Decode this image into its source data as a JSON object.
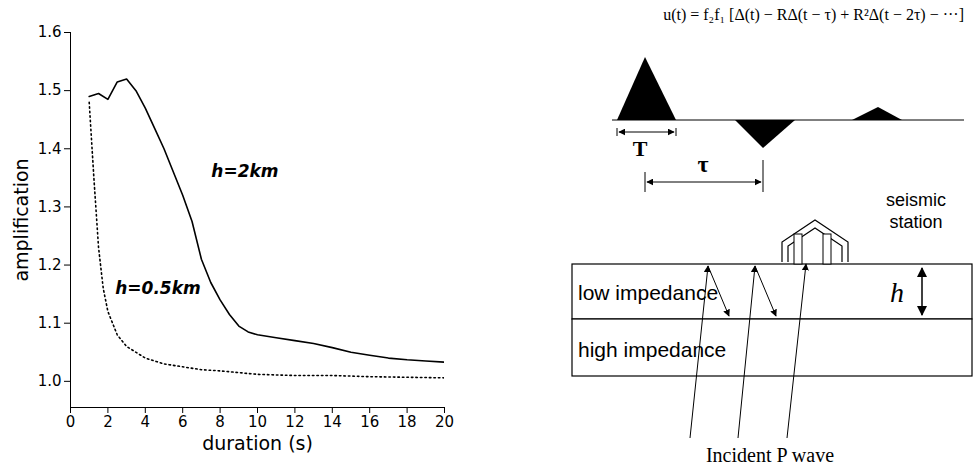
{
  "chart_data": {
    "type": "line",
    "xlabel": "duration (s)",
    "ylabel": "amplification",
    "xlim": [
      0,
      20
    ],
    "xticks": [
      0,
      2,
      4,
      6,
      8,
      10,
      12,
      14,
      16,
      18,
      20
    ],
    "ylim": [
      0.955,
      1.6
    ],
    "yticks": [
      {
        "value": 1,
        "label": "1.0"
      },
      1.1,
      1.2,
      1.3,
      1.4,
      1.5,
      1.6
    ],
    "grid": false,
    "series": [
      {
        "name": "h=2km",
        "color": "#000000",
        "line_style": "solid",
        "x": [
          1,
          1.5,
          2,
          2.5,
          3,
          3.5,
          4,
          4.5,
          5,
          5.5,
          6,
          6.5,
          7,
          7.5,
          8,
          8.5,
          9,
          9.5,
          10,
          11,
          12,
          13,
          14,
          15,
          16,
          17,
          18,
          19,
          20
        ],
        "values": [
          1.49,
          1.495,
          1.485,
          1.515,
          1.52,
          1.5,
          1.47,
          1.435,
          1.4,
          1.36,
          1.32,
          1.275,
          1.21,
          1.17,
          1.14,
          1.115,
          1.095,
          1.085,
          1.08,
          1.075,
          1.07,
          1.065,
          1.058,
          1.05,
          1.045,
          1.04,
          1.037,
          1.035,
          1.033
        ]
      },
      {
        "name": "h=0.5km",
        "color": "#000000",
        "line_style": "dotted",
        "x": [
          1,
          1.25,
          1.5,
          1.75,
          2,
          2.5,
          3,
          4,
          5,
          6,
          7,
          8,
          10,
          12,
          14,
          16,
          18,
          20
        ],
        "values": [
          1.48,
          1.35,
          1.23,
          1.16,
          1.12,
          1.08,
          1.06,
          1.04,
          1.03,
          1.025,
          1.02,
          1.018,
          1.012,
          1.01,
          1.01,
          1.008,
          1.007,
          1.006
        ]
      }
    ]
  },
  "diagram": {
    "formula": "u(t) = f₂f₁ [Δ(t) − RΔ(t − τ) + R²Δ(t − 2τ) − ···]",
    "pulse_width_label": "T",
    "delay_label": "τ",
    "station": "seismic station",
    "upper_layer": "low impedance",
    "lower_layer": "high impedance",
    "thickness_label": "h",
    "incident": "Incident P wave"
  }
}
